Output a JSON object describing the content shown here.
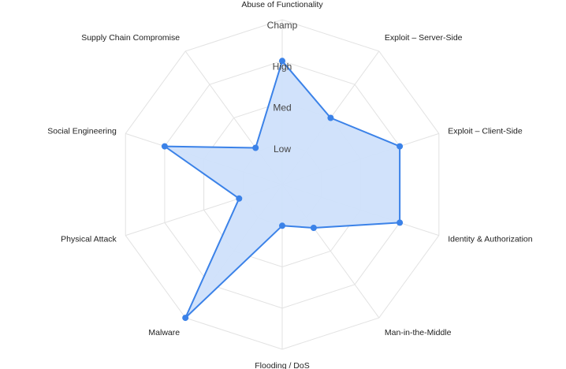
{
  "chart_data": {
    "type": "radar",
    "title": "",
    "categories": [
      "Abuse of Functionality",
      "Exploit – Server-Side",
      "Exploit – Client-Side",
      "Identity & Authorization",
      "Man-in-the-Middle",
      "Flooding / DoS",
      "Malware",
      "Physical Attack",
      "Social Engineering",
      "Supply Chain Compromise"
    ],
    "levels": [
      "Low",
      "Med",
      "High",
      "Champ"
    ],
    "range": [
      0,
      4
    ],
    "series": [
      {
        "values": [
          3,
          2,
          3,
          3,
          1.3,
          1,
          4,
          1.1,
          3,
          1.1
        ],
        "color": "#3b82e8",
        "fill": "#cfe0fb"
      }
    ],
    "grid": true,
    "legend": "none"
  }
}
